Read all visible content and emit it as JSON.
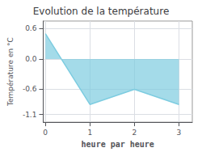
{
  "chart_data": {
    "type": "area",
    "title": "Evolution de la température",
    "xlabel": "heure par heure",
    "ylabel": "Température en °C",
    "x": [
      0,
      1,
      2,
      3
    ],
    "values": [
      0.5,
      -0.9,
      -0.6,
      -0.9
    ],
    "color": "#7dcce0",
    "xlim": [
      -0.05,
      3.3
    ],
    "ylim": [
      -1.25,
      0.75
    ],
    "xticks": [
      0,
      1,
      2,
      3
    ],
    "yticks": [
      -1.1,
      -0.6,
      {
        "value": 0,
        "label": "0.0"
      },
      0.6
    ],
    "grid": true
  }
}
